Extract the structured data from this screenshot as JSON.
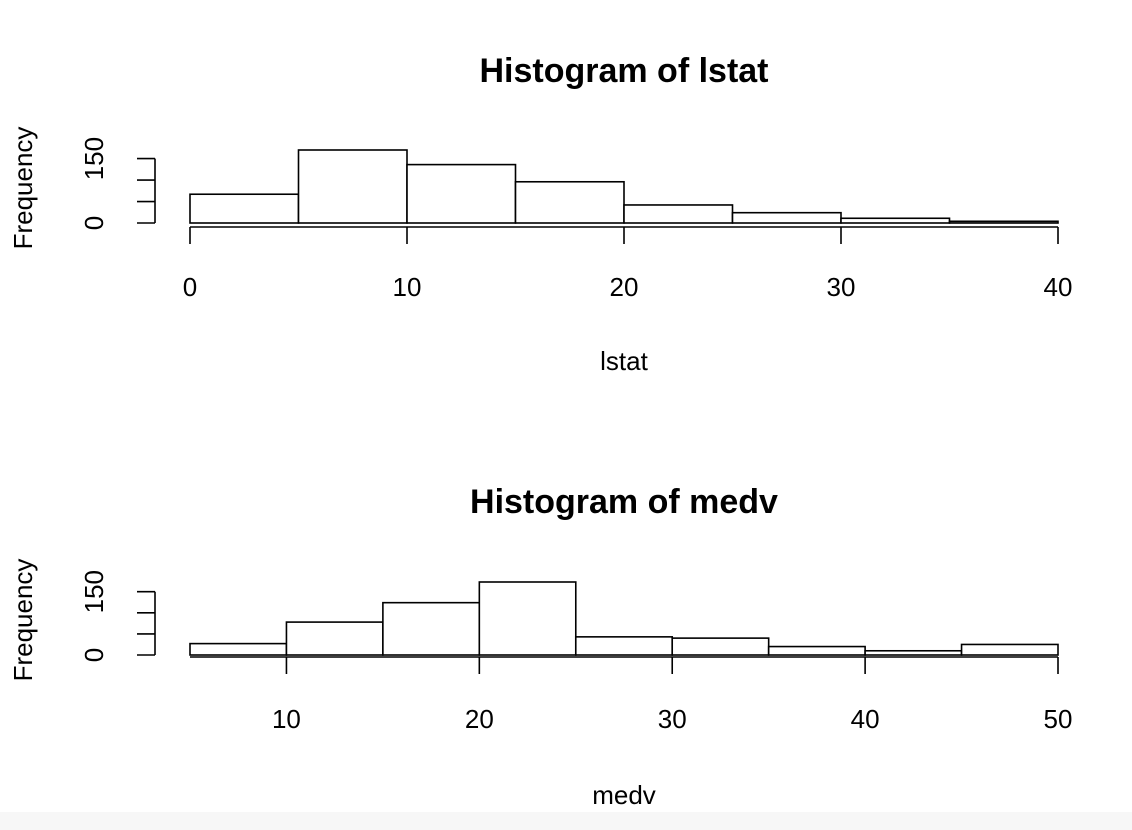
{
  "chart_data": [
    {
      "type": "bar",
      "title": "Histogram of lstat",
      "xlabel": "lstat",
      "ylabel": "Frequency",
      "bin_edges": [
        0,
        5,
        10,
        15,
        20,
        25,
        30,
        35,
        40
      ],
      "values": [
        67,
        170,
        136,
        96,
        42,
        24,
        11,
        4
      ],
      "xlim": [
        0,
        40
      ],
      "ylim": [
        0,
        170
      ],
      "x_ticks": [
        "0",
        "10",
        "20",
        "30",
        "40"
      ],
      "y_ticks": [
        "0",
        "150"
      ],
      "grid": false
    },
    {
      "type": "bar",
      "title": "Histogram of medv",
      "xlabel": "medv",
      "ylabel": "Frequency",
      "bin_edges": [
        5,
        10,
        15,
        20,
        25,
        30,
        35,
        40,
        45,
        50
      ],
      "values": [
        27,
        78,
        124,
        173,
        43,
        40,
        20,
        10,
        25
      ],
      "xlim": [
        5,
        50
      ],
      "ylim": [
        0,
        173
      ],
      "x_ticks": [
        "10",
        "20",
        "30",
        "40",
        "50"
      ],
      "y_ticks": [
        "0",
        "150"
      ],
      "grid": false
    }
  ]
}
